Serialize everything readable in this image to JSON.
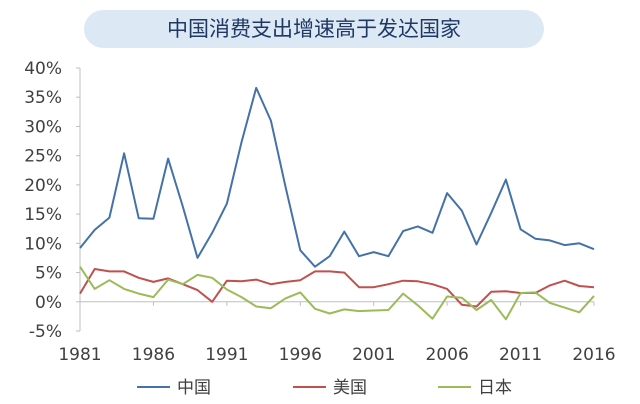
{
  "chart_data": {
    "type": "line",
    "title": "中国消费支出增速高于发达国家",
    "x": [
      1981,
      1982,
      1983,
      1984,
      1985,
      1986,
      1987,
      1988,
      1989,
      1990,
      1991,
      1992,
      1993,
      1994,
      1995,
      1996,
      1997,
      1998,
      1999,
      2000,
      2001,
      2002,
      2003,
      2004,
      2005,
      2006,
      2007,
      2008,
      2009,
      2010,
      2011,
      2012,
      2013,
      2014,
      2015,
      2016
    ],
    "x_ticks": [
      "1981",
      "1986",
      "1991",
      "1996",
      "2001",
      "2006",
      "2011",
      "2016"
    ],
    "y_ticks": [
      "40%",
      "35%",
      "30%",
      "25%",
      "20%",
      "15%",
      "10%",
      "5%",
      "0%",
      "-5%"
    ],
    "ylim": [
      -5,
      40
    ],
    "grid": false,
    "legend": "bottom",
    "series": [
      {
        "name": "中国",
        "color": "#4472a8",
        "values": [
          9.2,
          12.3,
          14.4,
          25.4,
          14.3,
          14.2,
          24.5,
          16.3,
          7.5,
          11.8,
          16.8,
          27.3,
          36.6,
          31.0,
          19.6,
          8.8,
          6.0,
          7.8,
          12.0,
          7.8,
          8.5,
          7.8,
          12.1,
          12.9,
          11.8,
          18.6,
          15.6,
          9.8,
          15.2,
          20.9,
          12.4,
          10.8,
          10.5,
          9.7,
          10.0,
          9.0
        ]
      },
      {
        "name": "美国",
        "color": "#c0504d",
        "values": [
          1.4,
          5.6,
          5.2,
          5.2,
          4.1,
          3.4,
          4.0,
          3.0,
          2.0,
          0.0,
          3.6,
          3.5,
          3.8,
          3.0,
          3.4,
          3.7,
          5.2,
          5.2,
          5.0,
          2.5,
          2.5,
          3.0,
          3.6,
          3.5,
          3.0,
          2.2,
          -0.5,
          -0.8,
          1.7,
          1.8,
          1.5,
          1.5,
          2.8,
          3.6,
          2.7,
          2.5
        ]
      },
      {
        "name": "日本",
        "color": "#9bbb59",
        "values": [
          6.0,
          2.2,
          3.7,
          2.2,
          1.4,
          0.8,
          3.8,
          3.0,
          4.6,
          4.1,
          2.1,
          0.8,
          -0.8,
          -1.1,
          0.6,
          1.6,
          -1.2,
          -2.0,
          -1.3,
          -1.6,
          -1.5,
          -1.4,
          1.4,
          -0.6,
          -2.9,
          0.9,
          0.7,
          -1.4,
          0.3,
          -3.0,
          1.5,
          1.6,
          -0.2,
          -1.0,
          -1.8,
          1.0
        ]
      }
    ]
  }
}
